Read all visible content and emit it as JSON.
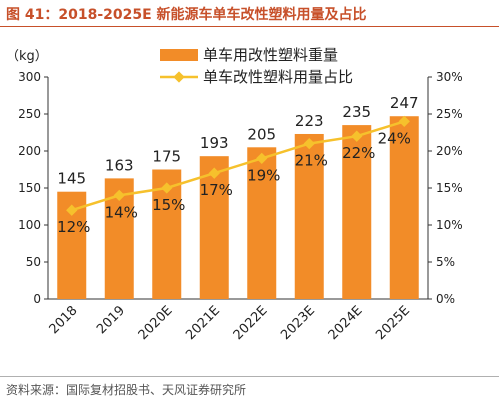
{
  "title": "图 41：2018-2025E 新能源车单车改性塑料用量及占比",
  "source": "资料来源：国际复材招股书、天风证券研究所",
  "colors": {
    "title": "#c7502a",
    "bar": "#f28c28",
    "line": "#f6c12c"
  },
  "chart_data": {
    "type": "bar+line",
    "categories": [
      "2018",
      "2019",
      "2020E",
      "2021E",
      "2022E",
      "2023E",
      "2024E",
      "2025E"
    ],
    "series": [
      {
        "name": "单车用改性塑料重量",
        "type": "bar",
        "axis": "left",
        "values": [
          145,
          163,
          175,
          193,
          205,
          223,
          235,
          247
        ],
        "labels": [
          "145",
          "163",
          "175",
          "193",
          "205",
          "223",
          "235",
          "247"
        ]
      },
      {
        "name": "单车改性塑料用量占比",
        "type": "line",
        "axis": "right",
        "values": [
          12,
          14,
          15,
          17,
          19,
          21,
          22,
          24
        ],
        "labels": [
          "12%",
          "14%",
          "15%",
          "17%",
          "19%",
          "21%",
          "22%",
          "24%"
        ]
      }
    ],
    "ylabel": "（kg）",
    "ylim": [
      0,
      300
    ],
    "yticks": [
      "0",
      "50",
      "100",
      "150",
      "200",
      "250",
      "300"
    ],
    "y2lim": [
      0,
      30
    ],
    "y2ticks": [
      "0%",
      "5%",
      "10%",
      "15%",
      "20%",
      "25%",
      "30%"
    ],
    "grid": false,
    "legend": "top-center"
  }
}
